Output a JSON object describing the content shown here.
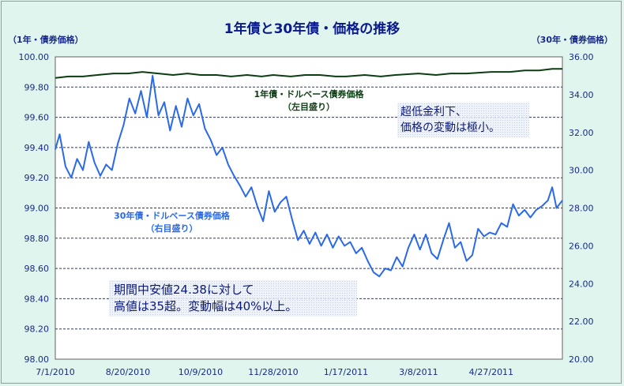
{
  "title": "1年債と30年債・価格の推移",
  "left_axis_unit": "（1年・債券価格）",
  "right_axis_unit": "（30年・債券価格）",
  "series_labels": {
    "one_year": [
      "1年債・ドルベース債券価格",
      "（左目盛り）"
    ],
    "thirty_year": [
      "30年債・ドルベース債券価格",
      "（右目盛り）"
    ]
  },
  "annotations": {
    "top_right": [
      "超低金利下、",
      "価格の変動は極小。"
    ],
    "bottom_left": [
      "期間中安値24.38に対して",
      "高値は35超。変動幅は40%以上。"
    ]
  },
  "colors": {
    "background": "#dff5ee",
    "one_year_line": "#0b3d12",
    "thirty_year_line": "#2a6ae8",
    "grid": "#303858",
    "axis_text": "#1a2a8a"
  },
  "chart_data": {
    "type": "line",
    "title": "1年債と30年債・価格の推移",
    "x_tick_labels": [
      "7/1/2010",
      "8/20/2010",
      "10/9/2010",
      "11/28/2010",
      "1/17/2011",
      "3/8/2011",
      "4/27/2011"
    ],
    "x_range": [
      "2010-07-01",
      "2011-06-15"
    ],
    "left_axis": {
      "label": "（1年・債券価格）",
      "ylim": [
        98.0,
        100.0
      ],
      "ticks": [
        "100.00",
        "99.80",
        "99.60",
        "99.40",
        "99.20",
        "99.00",
        "98.80",
        "98.60",
        "98.40",
        "98.20",
        "98.00"
      ]
    },
    "right_axis": {
      "label": "（30年・債券価格）",
      "ylim": [
        20.0,
        36.0
      ],
      "ticks": [
        "36.00",
        "34.00",
        "32.00",
        "30.00",
        "28.00",
        "26.00",
        "24.00",
        "22.00",
        "20.00"
      ]
    },
    "grid": "horizontal dashed",
    "series": [
      {
        "name": "1年債・ドルベース債券価格",
        "axis": "left",
        "points": [
          [
            "2010-07-01",
            99.86
          ],
          [
            "2010-07-10",
            99.87
          ],
          [
            "2010-07-20",
            99.87
          ],
          [
            "2010-07-30",
            99.88
          ],
          [
            "2010-08-10",
            99.89
          ],
          [
            "2010-08-20",
            99.89
          ],
          [
            "2010-08-30",
            99.9
          ],
          [
            "2010-09-10",
            99.89
          ],
          [
            "2010-09-20",
            99.88
          ],
          [
            "2010-09-30",
            99.89
          ],
          [
            "2010-10-09",
            99.88
          ],
          [
            "2010-10-20",
            99.88
          ],
          [
            "2010-10-30",
            99.87
          ],
          [
            "2010-11-10",
            99.88
          ],
          [
            "2010-11-20",
            99.87
          ],
          [
            "2010-11-28",
            99.88
          ],
          [
            "2010-12-10",
            99.87
          ],
          [
            "2010-12-20",
            99.88
          ],
          [
            "2010-12-30",
            99.88
          ],
          [
            "2011-01-10",
            99.87
          ],
          [
            "2011-01-17",
            99.87
          ],
          [
            "2011-01-30",
            99.88
          ],
          [
            "2011-02-10",
            99.87
          ],
          [
            "2011-02-20",
            99.88
          ],
          [
            "2011-03-08",
            99.89
          ],
          [
            "2011-03-20",
            99.88
          ],
          [
            "2011-03-30",
            99.89
          ],
          [
            "2011-04-10",
            99.89
          ],
          [
            "2011-04-27",
            99.9
          ],
          [
            "2011-05-10",
            99.9
          ],
          [
            "2011-05-20",
            99.91
          ],
          [
            "2011-05-30",
            99.91
          ],
          [
            "2011-06-08",
            99.92
          ],
          [
            "2011-06-15",
            99.92
          ]
        ]
      },
      {
        "name": "30年債・ドルベース債券価格",
        "axis": "right",
        "points": [
          [
            "2010-07-01",
            31.1
          ],
          [
            "2010-07-04",
            31.9
          ],
          [
            "2010-07-08",
            30.2
          ],
          [
            "2010-07-12",
            29.6
          ],
          [
            "2010-07-16",
            30.6
          ],
          [
            "2010-07-20",
            30.0
          ],
          [
            "2010-07-24",
            31.5
          ],
          [
            "2010-07-28",
            30.4
          ],
          [
            "2010-08-01",
            29.7
          ],
          [
            "2010-08-05",
            30.3
          ],
          [
            "2010-08-09",
            30.0
          ],
          [
            "2010-08-13",
            31.4
          ],
          [
            "2010-08-17",
            32.4
          ],
          [
            "2010-08-21",
            33.8
          ],
          [
            "2010-08-25",
            33.0
          ],
          [
            "2010-08-29",
            34.2
          ],
          [
            "2010-09-02",
            32.8
          ],
          [
            "2010-09-06",
            35.0
          ],
          [
            "2010-09-10",
            32.9
          ],
          [
            "2010-09-14",
            33.6
          ],
          [
            "2010-09-18",
            32.1
          ],
          [
            "2010-09-22",
            33.4
          ],
          [
            "2010-09-26",
            32.3
          ],
          [
            "2010-09-30",
            33.8
          ],
          [
            "2010-10-04",
            32.9
          ],
          [
            "2010-10-08",
            33.5
          ],
          [
            "2010-10-12",
            32.2
          ],
          [
            "2010-10-16",
            31.6
          ],
          [
            "2010-10-20",
            30.8
          ],
          [
            "2010-10-24",
            31.2
          ],
          [
            "2010-10-28",
            30.3
          ],
          [
            "2010-11-01",
            29.7
          ],
          [
            "2010-11-05",
            29.2
          ],
          [
            "2010-11-09",
            28.6
          ],
          [
            "2010-11-13",
            29.1
          ],
          [
            "2010-11-17",
            28.1
          ],
          [
            "2010-11-21",
            27.3
          ],
          [
            "2010-11-25",
            28.9
          ],
          [
            "2010-11-29",
            27.8
          ],
          [
            "2010-12-03",
            28.3
          ],
          [
            "2010-12-07",
            28.6
          ],
          [
            "2010-12-11",
            27.4
          ],
          [
            "2010-12-15",
            26.3
          ],
          [
            "2010-12-19",
            26.8
          ],
          [
            "2010-12-23",
            26.1
          ],
          [
            "2010-12-27",
            26.7
          ],
          [
            "2010-12-31",
            26.0
          ],
          [
            "2011-01-04",
            26.6
          ],
          [
            "2011-01-08",
            25.9
          ],
          [
            "2011-01-12",
            26.5
          ],
          [
            "2011-01-16",
            26.0
          ],
          [
            "2011-01-20",
            26.2
          ],
          [
            "2011-01-24",
            25.6
          ],
          [
            "2011-01-28",
            25.9
          ],
          [
            "2011-02-01",
            25.2
          ],
          [
            "2011-02-05",
            24.6
          ],
          [
            "2011-02-09",
            24.38
          ],
          [
            "2011-02-13",
            24.8
          ],
          [
            "2011-02-17",
            24.7
          ],
          [
            "2011-02-21",
            25.4
          ],
          [
            "2011-02-25",
            24.9
          ],
          [
            "2011-03-01",
            25.9
          ],
          [
            "2011-03-05",
            26.6
          ],
          [
            "2011-03-09",
            25.8
          ],
          [
            "2011-03-13",
            26.6
          ],
          [
            "2011-03-17",
            25.6
          ],
          [
            "2011-03-21",
            25.3
          ],
          [
            "2011-03-25",
            26.3
          ],
          [
            "2011-03-29",
            27.2
          ],
          [
            "2011-04-02",
            25.9
          ],
          [
            "2011-04-06",
            26.2
          ],
          [
            "2011-04-10",
            25.2
          ],
          [
            "2011-04-14",
            25.5
          ],
          [
            "2011-04-18",
            26.9
          ],
          [
            "2011-04-22",
            26.5
          ],
          [
            "2011-04-26",
            26.7
          ],
          [
            "2011-04-30",
            26.6
          ],
          [
            "2011-05-04",
            27.2
          ],
          [
            "2011-05-08",
            27.0
          ],
          [
            "2011-05-12",
            28.2
          ],
          [
            "2011-05-16",
            27.6
          ],
          [
            "2011-05-20",
            27.9
          ],
          [
            "2011-05-24",
            27.5
          ],
          [
            "2011-05-28",
            27.9
          ],
          [
            "2011-06-01",
            28.1
          ],
          [
            "2011-06-05",
            28.4
          ],
          [
            "2011-06-08",
            29.1
          ],
          [
            "2011-06-11",
            28.0
          ],
          [
            "2011-06-15",
            28.4
          ]
        ]
      }
    ]
  }
}
